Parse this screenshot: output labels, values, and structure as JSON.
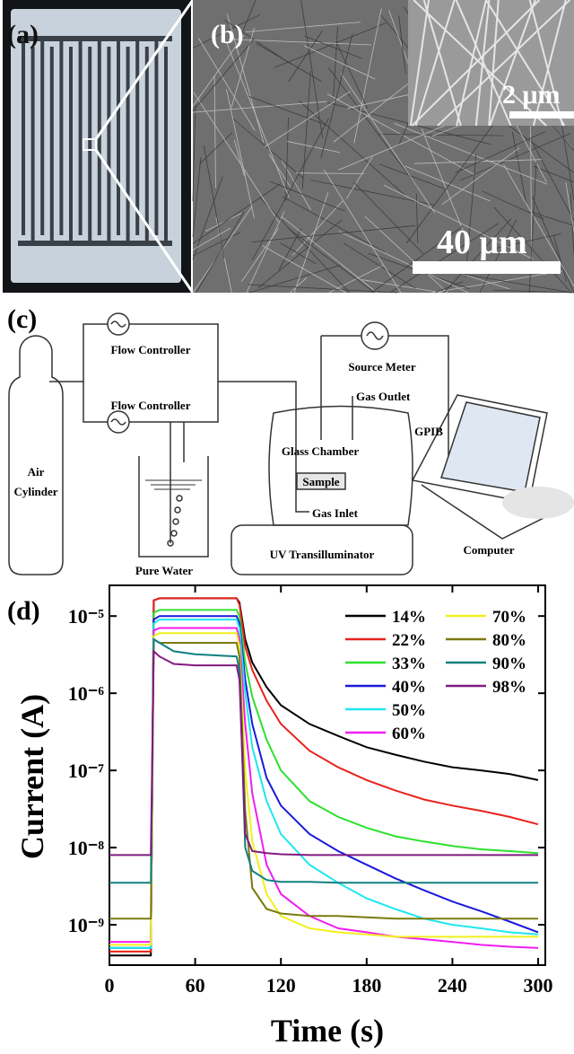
{
  "panel_a": {
    "label": "(a)"
  },
  "panel_b": {
    "label": "(b)",
    "inset_scale": "2 μm",
    "scale": "40 μm"
  },
  "diagram": {
    "label": "(c)",
    "flow_controller_1": "Flow Controller",
    "flow_controller_2": "Flow Controller",
    "air_cylinder": [
      "Air",
      "Cylinder"
    ],
    "pure_water": "Pure Water",
    "uv": "UV Transilluminator",
    "chamber": "Glass Chamber",
    "sample": "Sample",
    "gas_inlet": "Gas Inlet",
    "gas_outlet": "Gas Outlet",
    "source_meter": "Source Meter",
    "gpib": "GPIB",
    "computer": "Computer"
  },
  "chart_data": {
    "type": "line",
    "label": "(d)",
    "x_label": "Time (s)",
    "y_label": "Current (A)",
    "log_y": true,
    "xlim": [
      0,
      305
    ],
    "ylim": [
      3e-10,
      2.5e-05
    ],
    "xticks": [
      0,
      60,
      120,
      180,
      240,
      300
    ],
    "yticks": [
      {
        "value": 1e-09,
        "label": "10⁻⁹"
      },
      {
        "value": 1e-08,
        "label": "10⁻⁸"
      },
      {
        "value": 1e-07,
        "label": "10⁻⁷"
      },
      {
        "value": 1e-06,
        "label": "10⁻⁶"
      },
      {
        "value": 1e-05,
        "label": "10⁻⁵"
      }
    ],
    "x": [
      0,
      29,
      31,
      35,
      45,
      60,
      89,
      91,
      95,
      100,
      110,
      120,
      140,
      160,
      180,
      200,
      220,
      240,
      260,
      280,
      300
    ],
    "series": [
      {
        "name": "14%",
        "color": "#000000",
        "values": [
          4e-10,
          4e-10,
          1.6e-05,
          1.7e-05,
          1.7e-05,
          1.7e-05,
          1.7e-05,
          1.5e-05,
          5e-06,
          2.5e-06,
          1.2e-06,
          7e-07,
          4e-07,
          2.8e-07,
          2e-07,
          1.6e-07,
          1.3e-07,
          1.1e-07,
          1e-07,
          9e-08,
          7.5e-08
        ]
      },
      {
        "name": "22%",
        "color": "#e8231d",
        "values": [
          4.5e-10,
          4.5e-10,
          1.6e-05,
          1.7e-05,
          1.7e-05,
          1.7e-05,
          1.7e-05,
          1.4e-05,
          4e-06,
          2e-06,
          8e-07,
          4e-07,
          1.8e-07,
          1.1e-07,
          7.5e-08,
          5.5e-08,
          4.2e-08,
          3.5e-08,
          3e-08,
          2.5e-08,
          2e-08
        ]
      },
      {
        "name": "33%",
        "color": "#2ee02e",
        "values": [
          5e-10,
          5e-10,
          1.1e-05,
          1.2e-05,
          1.2e-05,
          1.2e-05,
          1.2e-05,
          1e-05,
          2.5e-06,
          9e-07,
          2.5e-07,
          1e-07,
          4e-08,
          2.5e-08,
          1.8e-08,
          1.4e-08,
          1.2e-08,
          1.05e-08,
          9.5e-09,
          9e-09,
          8.5e-09
        ]
      },
      {
        "name": "40%",
        "color": "#1a1adb",
        "values": [
          5e-10,
          5e-10,
          9e-06,
          1e-05,
          1e-05,
          1e-05,
          1e-05,
          8e-06,
          1.5e-06,
          4e-07,
          8e-08,
          3.5e-08,
          1.5e-08,
          9e-09,
          6e-09,
          4e-09,
          2.8e-09,
          2e-09,
          1.5e-09,
          1.1e-09,
          8e-10
        ]
      },
      {
        "name": "50%",
        "color": "#1ee6f0",
        "values": [
          5e-10,
          5e-10,
          8e-06,
          9e-06,
          9e-06,
          9e-06,
          9e-06,
          7e-06,
          1e-06,
          2e-07,
          4e-08,
          1.5e-08,
          6e-09,
          3.5e-09,
          2.2e-09,
          1.6e-09,
          1.2e-09,
          1e-09,
          9e-10,
          8e-10,
          7.5e-10
        ]
      },
      {
        "name": "60%",
        "color": "#f01ef0",
        "values": [
          6e-10,
          6e-10,
          6.5e-06,
          7e-06,
          7e-06,
          7e-06,
          7e-06,
          5e-06,
          4e-07,
          5e-08,
          6e-09,
          2.5e-09,
          1.3e-09,
          9e-10,
          8e-10,
          7e-10,
          6.5e-10,
          6e-10,
          5.5e-10,
          5.2e-10,
          5e-10
        ]
      },
      {
        "name": "70%",
        "color": "#f0f01e",
        "values": [
          5.5e-10,
          5.5e-10,
          5.5e-06,
          6e-06,
          6e-06,
          6e-06,
          6e-06,
          4e-06,
          1e-07,
          1.2e-08,
          2.5e-09,
          1.3e-09,
          9e-10,
          8e-10,
          7.5e-10,
          7e-10,
          7e-10,
          7e-10,
          7e-10,
          7e-10,
          7e-10
        ]
      },
      {
        "name": "80%",
        "color": "#7a7a10",
        "values": [
          1.2e-09,
          1.2e-09,
          5e-06,
          4.5e-06,
          4.5e-06,
          4.5e-06,
          4.5e-06,
          3e-06,
          3e-08,
          3e-09,
          1.6e-09,
          1.4e-09,
          1.3e-09,
          1.3e-09,
          1.25e-09,
          1.2e-09,
          1.2e-09,
          1.2e-09,
          1.2e-09,
          1.2e-09,
          1.2e-09
        ]
      },
      {
        "name": "90%",
        "color": "#118080",
        "values": [
          3.5e-09,
          3.5e-09,
          5e-06,
          4.5e-06,
          3.5e-06,
          3.2e-06,
          3e-06,
          2e-06,
          1e-08,
          5e-09,
          3.8e-09,
          3.6e-09,
          3.6e-09,
          3.5e-09,
          3.5e-09,
          3.5e-09,
          3.5e-09,
          3.5e-09,
          3.5e-09,
          3.5e-09,
          3.5e-09
        ]
      },
      {
        "name": "98%",
        "color": "#801a80",
        "values": [
          8e-09,
          8e-09,
          3.5e-06,
          3e-06,
          2.4e-06,
          2.3e-06,
          2.3e-06,
          1.5e-06,
          1.5e-08,
          9e-09,
          8.5e-09,
          8.2e-09,
          8e-09,
          8e-09,
          8e-09,
          8e-09,
          8e-09,
          8e-09,
          8e-09,
          8e-09,
          8e-09
        ]
      }
    ]
  }
}
